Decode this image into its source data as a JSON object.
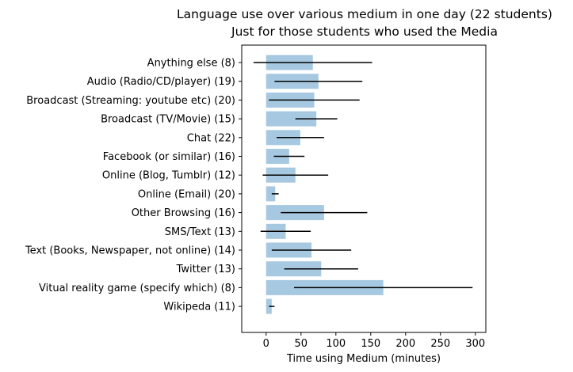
{
  "chart_data": {
    "type": "bar",
    "orientation": "horizontal",
    "title": "Language use over various medium in one day (22 students)",
    "subtitle": "Just for those students who used the Media",
    "xlabel": "Time using Medium (minutes)",
    "ylabel": "",
    "xlim": [
      -35,
      315
    ],
    "xticks": [
      0,
      50,
      100,
      150,
      200,
      250,
      300
    ],
    "grid": false,
    "legend": "none",
    "bar_color": "#a6c8e0",
    "error_color": "#000000",
    "categories": [
      "Anything else (8)",
      "Audio (Radio/CD/player) (19)",
      "Broadcast (Streaming: youtube etc) (20)",
      "Broadcast (TV/Movie) (15)",
      "Chat (22)",
      "Facebook (or similar) (16)",
      "Online (Blog, Tumblr) (12)",
      "Online (Email) (20)",
      "Other Browsing (16)",
      "SMS/Text (13)",
      "Text (Books, Newspaper, not online) (14)",
      "Twitter (13)",
      "Vitual reality game (specify which) (8)",
      "Wikipeda (11)"
    ],
    "values": [
      67,
      75,
      69,
      72,
      49,
      33,
      42,
      13,
      83,
      28,
      65,
      79,
      168,
      8
    ],
    "errors": [
      85,
      63,
      65,
      30,
      34,
      22,
      47,
      5,
      62,
      36,
      57,
      53,
      128,
      4
    ]
  }
}
